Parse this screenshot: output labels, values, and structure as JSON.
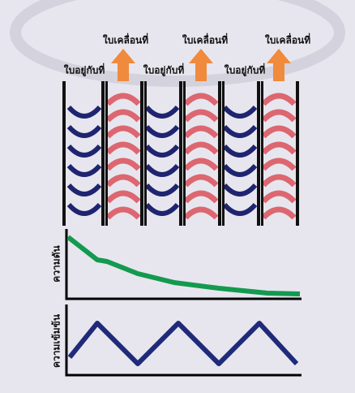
{
  "labels": {
    "mobile": [
      "ใบเคลื่อนที่",
      "ใบเคลื่อนที่",
      "ใบเคลื่อนที่"
    ],
    "stationary": [
      "ใบอยู่กับที่",
      "ใบอยู่กับที่",
      "ใบอยู่กับที่"
    ]
  },
  "graphs": [
    {
      "ylabel": "ความดัน"
    },
    {
      "ylabel": "ความเข้มข้น"
    }
  ]
}
